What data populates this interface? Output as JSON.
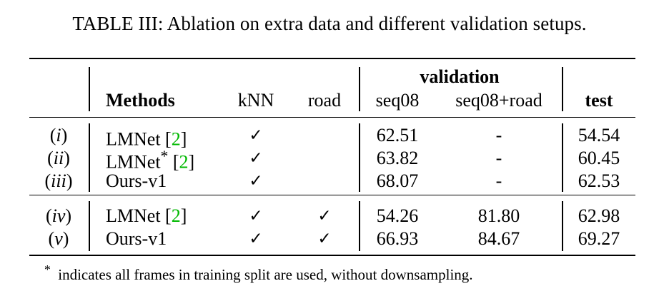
{
  "caption": "TABLE III: Ablation on extra data and different validation setups.",
  "group_header": "validation",
  "headers": {
    "methods": "Methods",
    "knn": "kNN",
    "road": "road",
    "seq08": "seq08",
    "seq08_road": "seq08+road",
    "test": "test"
  },
  "rows": [
    {
      "id": "i",
      "method": "LMNet",
      "star": "",
      "ref": "2",
      "knn": "✓",
      "road": "",
      "seq08": "62.51",
      "seq08_road": "-",
      "test": "54.54"
    },
    {
      "id": "ii",
      "method": "LMNet",
      "star": "*",
      "ref": "2",
      "knn": "✓",
      "road": "",
      "seq08": "63.82",
      "seq08_road": "-",
      "test": "60.45"
    },
    {
      "id": "iii",
      "method": "Ours-v1",
      "star": "",
      "ref": "",
      "knn": "✓",
      "road": "",
      "seq08": "68.07",
      "seq08_road": "-",
      "test": "62.53"
    },
    {
      "id": "iv",
      "method": "LMNet",
      "star": "",
      "ref": "2",
      "knn": "✓",
      "road": "✓",
      "seq08": "54.26",
      "seq08_road": "81.80",
      "test": "62.98"
    },
    {
      "id": "v",
      "method": "Ours-v1",
      "star": "",
      "ref": "",
      "knn": "✓",
      "road": "✓",
      "seq08": "66.93",
      "seq08_road": "84.67",
      "test": "69.27"
    }
  ],
  "footnote_mark": "*",
  "footnote": "indicates all frames in training split are used, without downsampling."
}
